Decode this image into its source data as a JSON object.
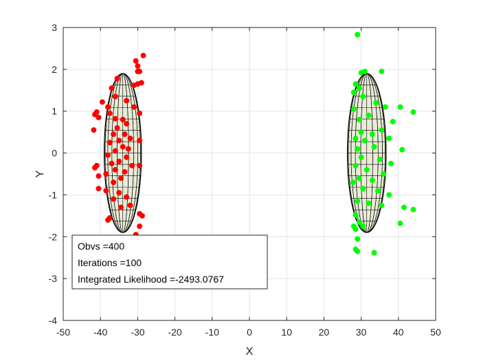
{
  "chart_data": {
    "type": "scatter",
    "title": "",
    "xlabel": "X",
    "ylabel": "Y",
    "xlim": [
      -50,
      50
    ],
    "ylim": [
      -4,
      3
    ],
    "xticks": [
      -50,
      -40,
      -30,
      -20,
      -10,
      0,
      10,
      20,
      30,
      40,
      50
    ],
    "yticks": [
      -4,
      -3,
      -2,
      -1,
      0,
      1,
      2,
      3
    ],
    "grid": true,
    "colors": {
      "cluster1": "#ff0000",
      "cluster2": "#00ff00",
      "ellipsoid_face": "#e8ebd6",
      "mesh": "#000000"
    },
    "ellipsoids": [
      {
        "cx": -34,
        "cy": 0,
        "rx": 5,
        "ry": 1.9
      },
      {
        "cx": 31.5,
        "cy": 0,
        "rx": 5.2,
        "ry": 1.9
      }
    ],
    "series": [
      {
        "color": "#ff0000",
        "points": [
          [
            -28.5,
            2.33
          ],
          [
            -30.5,
            2.2
          ],
          [
            -30,
            2.08
          ],
          [
            -29.5,
            1.95
          ],
          [
            -30,
            1.95
          ],
          [
            -29,
            1.68
          ],
          [
            -30,
            1.65
          ],
          [
            -31,
            1.62
          ],
          [
            -35.5,
            1.78
          ],
          [
            -37,
            1.55
          ],
          [
            -39.5,
            1.22
          ],
          [
            -38,
            1.1
          ],
          [
            -37.5,
            0.95
          ],
          [
            -41,
            0.98
          ],
          [
            -41.5,
            0.92
          ],
          [
            -40.5,
            0.85
          ],
          [
            -36,
            0.82
          ],
          [
            -34,
            0.8
          ],
          [
            -33,
            0.7
          ],
          [
            -35.5,
            0.6
          ],
          [
            -36.5,
            0.45
          ],
          [
            -33.5,
            0.45
          ],
          [
            -32,
            0.35
          ],
          [
            -35,
            0.3
          ],
          [
            -37.5,
            0.25
          ],
          [
            -34,
            0.15
          ],
          [
            -32.5,
            0.1
          ],
          [
            -36,
            0.05
          ],
          [
            -38,
            -0.05
          ],
          [
            -33,
            -0.1
          ],
          [
            -35,
            -0.2
          ],
          [
            -37,
            -0.25
          ],
          [
            -31.5,
            -0.3
          ],
          [
            -36,
            -0.4
          ],
          [
            -33.5,
            -0.45
          ],
          [
            -38.5,
            -0.5
          ],
          [
            -34.5,
            -0.6
          ],
          [
            -36.5,
            -0.7
          ],
          [
            -40.5,
            -0.85
          ],
          [
            -41.8,
            0.55
          ],
          [
            -41,
            -0.3
          ],
          [
            -41.5,
            -0.35
          ],
          [
            -40.5,
            -0.55
          ],
          [
            -38.5,
            -0.9
          ],
          [
            -35,
            -0.95
          ],
          [
            -33,
            -1.05
          ],
          [
            -36.5,
            -1.1
          ],
          [
            -34.5,
            -1.3
          ],
          [
            -32,
            -1.25
          ],
          [
            -37.5,
            -1.55
          ],
          [
            -38,
            -1.6
          ],
          [
            -29.5,
            -1.45
          ],
          [
            -28.8,
            -1.5
          ],
          [
            -29.5,
            -1.75
          ],
          [
            -30.5,
            -1.95
          ],
          [
            -35.5,
            -2.05
          ],
          [
            -35,
            -2.22
          ],
          [
            -30.5,
            -2.32
          ],
          [
            -30.5,
            -3.0
          ],
          [
            -29.5,
            -0.3
          ],
          [
            -29.5,
            0.95
          ],
          [
            -29.5,
            0.3
          ],
          [
            -31,
            1.1
          ],
          [
            -33,
            1.25
          ],
          [
            -36,
            1.35
          ]
        ]
      },
      {
        "color": "#00ff00",
        "points": [
          [
            29,
            2.83
          ],
          [
            30,
            1.92
          ],
          [
            31,
            1.95
          ],
          [
            35.5,
            1.95
          ],
          [
            28.5,
            1.65
          ],
          [
            28,
            1.45
          ],
          [
            30.5,
            1.35
          ],
          [
            28,
            1.05
          ],
          [
            34,
            1.2
          ],
          [
            36.5,
            1.1
          ],
          [
            40.5,
            1.1
          ],
          [
            44,
            0.98
          ],
          [
            29.5,
            0.8
          ],
          [
            32,
            0.9
          ],
          [
            38.5,
            0.75
          ],
          [
            30,
            0.5
          ],
          [
            33,
            0.45
          ],
          [
            35.5,
            0.55
          ],
          [
            28.5,
            0.35
          ],
          [
            31,
            0.3
          ],
          [
            37.5,
            0.35
          ],
          [
            29,
            0.1
          ],
          [
            33.5,
            0.15
          ],
          [
            41,
            0.08
          ],
          [
            30,
            -0.1
          ],
          [
            35,
            -0.15
          ],
          [
            38,
            -0.25
          ],
          [
            28.5,
            -0.3
          ],
          [
            31.5,
            -0.4
          ],
          [
            36,
            -0.5
          ],
          [
            29.5,
            -0.6
          ],
          [
            33,
            -0.65
          ],
          [
            27.8,
            -0.7
          ],
          [
            30.5,
            -0.85
          ],
          [
            34.5,
            -0.9
          ],
          [
            37.5,
            -1.0
          ],
          [
            29,
            -1.15
          ],
          [
            32,
            -1.2
          ],
          [
            35.5,
            -1.25
          ],
          [
            41.5,
            -1.3
          ],
          [
            44,
            -1.35
          ],
          [
            28.5,
            -1.48
          ],
          [
            29.5,
            -1.65
          ],
          [
            28,
            -1.75
          ],
          [
            28.5,
            -1.82
          ],
          [
            40.5,
            -1.68
          ],
          [
            29,
            -2.05
          ],
          [
            28.5,
            -2.3
          ],
          [
            29,
            -2.35
          ],
          [
            33.5,
            -2.38
          ],
          [
            29.5,
            1.55
          ],
          [
            30.5,
            -1.75
          ]
        ]
      }
    ],
    "annotation": {
      "lines": [
        "Obvs =400",
        "Iterations =100",
        "Integrated Likelihood =-2493.0767"
      ]
    }
  }
}
